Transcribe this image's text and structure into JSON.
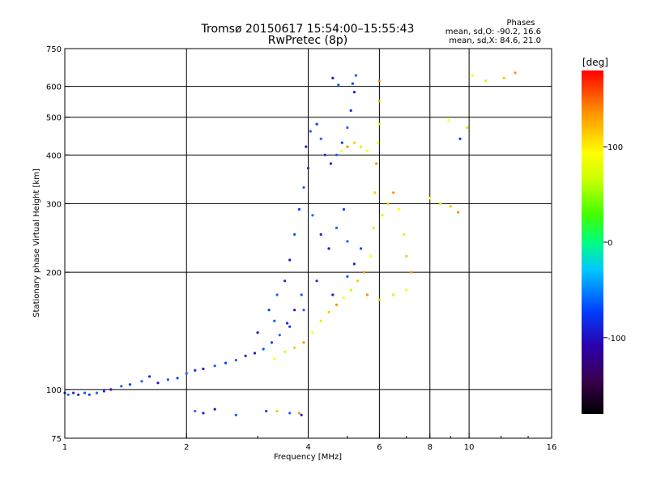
{
  "chart_data": {
    "type": "scatter",
    "title": "Tromsø 20150617 15:54:00–15:55:43",
    "subtitle": "RwPretec (8p)",
    "legend_block": {
      "heading": "Phases",
      "line_o": "mean, sd,O: -90.2, 16.6",
      "line_x": "mean, sd,X:  84.6, 21.0"
    },
    "xlabel": "Frequency [MHz]",
    "ylabel": "Stationary phase Virtual Height [km]",
    "x_scale": "log",
    "y_scale": "log",
    "xlim": [
      1,
      16
    ],
    "ylim": [
      75,
      750
    ],
    "grid": true,
    "x_ticks": [
      1,
      2,
      4,
      6,
      8,
      10,
      16
    ],
    "x_tick_labels": [
      "1",
      "2",
      "4",
      "6",
      "8",
      "10",
      "16"
    ],
    "y_ticks": [
      75,
      100,
      200,
      300,
      400,
      500,
      600,
      750
    ],
    "y_tick_labels": [
      "75",
      "100",
      "200",
      "300",
      "400",
      "500",
      "600",
      "750"
    ],
    "colorbar": {
      "label": "[deg]",
      "min": -180,
      "max": 180,
      "ticks": [
        100,
        0,
        -100
      ],
      "tick_labels": [
        "100",
        "0",
        "-100"
      ],
      "colors": [
        "#000000",
        "#3a0050",
        "#2a00b0",
        "#0040ff",
        "#00c8ff",
        "#00ff80",
        "#40ff00",
        "#c8ff00",
        "#ffff00",
        "#ff9000",
        "#ff0000"
      ]
    },
    "series": [
      {
        "mode": "O",
        "points": [
          [
            1.0,
            98
          ],
          [
            1.02,
            97
          ],
          [
            1.05,
            98
          ],
          [
            1.08,
            97
          ],
          [
            1.12,
            98
          ],
          [
            1.15,
            97
          ],
          [
            1.2,
            98
          ],
          [
            1.25,
            99
          ],
          [
            1.3,
            100
          ],
          [
            1.38,
            102
          ],
          [
            1.45,
            103
          ],
          [
            1.55,
            105
          ],
          [
            1.62,
            108
          ],
          [
            1.7,
            104
          ],
          [
            1.8,
            106
          ],
          [
            1.9,
            107
          ],
          [
            2.0,
            110
          ],
          [
            2.1,
            112
          ],
          [
            2.2,
            113
          ],
          [
            2.35,
            115
          ],
          [
            2.5,
            117
          ],
          [
            2.65,
            119
          ],
          [
            2.8,
            122
          ],
          [
            2.95,
            124
          ],
          [
            3.1,
            127
          ],
          [
            3.25,
            132
          ],
          [
            3.4,
            138
          ],
          [
            3.55,
            148
          ],
          [
            3.7,
            160
          ],
          [
            3.85,
            175
          ],
          [
            3.2,
            160
          ],
          [
            3.35,
            175
          ],
          [
            3.5,
            190
          ],
          [
            3.6,
            215
          ],
          [
            3.7,
            250
          ],
          [
            3.8,
            290
          ],
          [
            3.9,
            330
          ],
          [
            4.0,
            370
          ],
          [
            3.95,
            420
          ],
          [
            4.05,
            460
          ],
          [
            4.2,
            480
          ],
          [
            4.3,
            440
          ],
          [
            4.4,
            400
          ],
          [
            4.55,
            380
          ],
          [
            4.7,
            400
          ],
          [
            4.85,
            430
          ],
          [
            5.0,
            470
          ],
          [
            5.1,
            520
          ],
          [
            5.2,
            580
          ],
          [
            5.25,
            640
          ],
          [
            5.15,
            610
          ],
          [
            4.1,
            280
          ],
          [
            4.3,
            250
          ],
          [
            4.5,
            230
          ],
          [
            4.7,
            260
          ],
          [
            4.9,
            290
          ],
          [
            5.0,
            240
          ],
          [
            5.2,
            210
          ],
          [
            3.0,
            140
          ],
          [
            3.3,
            150
          ],
          [
            3.6,
            145
          ],
          [
            3.9,
            160
          ],
          [
            4.2,
            190
          ],
          [
            4.6,
            175
          ],
          [
            5.0,
            195
          ],
          [
            5.4,
            230
          ],
          [
            2.1,
            88
          ],
          [
            2.2,
            87
          ],
          [
            2.35,
            89
          ],
          [
            2.65,
            86
          ],
          [
            3.15,
            88
          ],
          [
            3.6,
            87
          ],
          [
            3.85,
            86
          ],
          [
            4.6,
            630
          ],
          [
            4.75,
            605
          ],
          [
            9.5,
            440
          ]
        ]
      },
      {
        "mode": "X",
        "points": [
          [
            3.3,
            120
          ],
          [
            3.5,
            125
          ],
          [
            3.7,
            128
          ],
          [
            3.9,
            132
          ],
          [
            4.1,
            140
          ],
          [
            4.3,
            150
          ],
          [
            4.5,
            158
          ],
          [
            4.7,
            165
          ],
          [
            4.9,
            172
          ],
          [
            5.1,
            180
          ],
          [
            5.3,
            190
          ],
          [
            5.5,
            200
          ],
          [
            5.7,
            220
          ],
          [
            5.8,
            260
          ],
          [
            5.85,
            320
          ],
          [
            5.9,
            380
          ],
          [
            5.95,
            430
          ],
          [
            6.0,
            480
          ],
          [
            6.0,
            550
          ],
          [
            6.0,
            620
          ],
          [
            5.6,
            410
          ],
          [
            5.4,
            420
          ],
          [
            5.2,
            430
          ],
          [
            5.0,
            420
          ],
          [
            4.85,
            410
          ],
          [
            6.1,
            280
          ],
          [
            6.3,
            300
          ],
          [
            6.5,
            320
          ],
          [
            6.7,
            290
          ],
          [
            6.9,
            250
          ],
          [
            7.0,
            220
          ],
          [
            7.2,
            200
          ],
          [
            7.0,
            180
          ],
          [
            6.5,
            175
          ],
          [
            6.0,
            170
          ],
          [
            5.6,
            175
          ],
          [
            8.0,
            310
          ],
          [
            8.5,
            300
          ],
          [
            9.0,
            295
          ],
          [
            9.4,
            285
          ],
          [
            10.2,
            640
          ],
          [
            11.0,
            620
          ],
          [
            12.2,
            630
          ],
          [
            13.0,
            650
          ],
          [
            8.9,
            490
          ],
          [
            9.9,
            470
          ],
          [
            3.35,
            88
          ],
          [
            3.8,
            87
          ]
        ]
      }
    ]
  }
}
